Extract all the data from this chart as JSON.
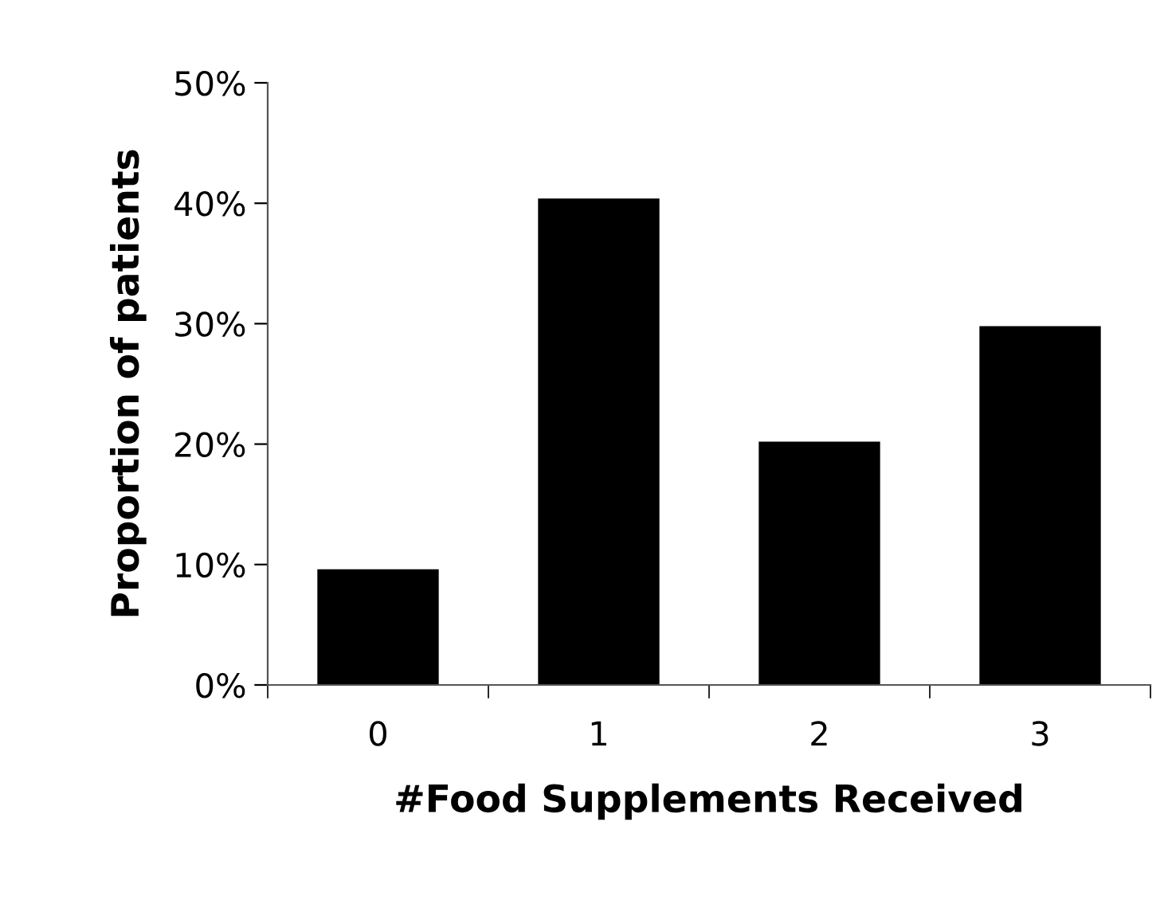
{
  "chart_data": {
    "type": "bar",
    "xlabel": "#Food Supplements Received",
    "ylabel": "Proportion of patients",
    "categories": [
      "0",
      "1",
      "2",
      "3"
    ],
    "values": [
      9.6,
      40.4,
      20.2,
      29.8
    ],
    "color": "#000000",
    "ylim": [
      0,
      50
    ],
    "yticks": [
      {
        "value": 0,
        "label": "0%"
      },
      {
        "value": 10,
        "label": "10%"
      },
      {
        "value": 20,
        "label": "20%"
      },
      {
        "value": 30,
        "label": "30%"
      },
      {
        "value": 40,
        "label": "40%"
      },
      {
        "value": 50,
        "label": "50%"
      }
    ],
    "grid": false,
    "legend": false
  }
}
